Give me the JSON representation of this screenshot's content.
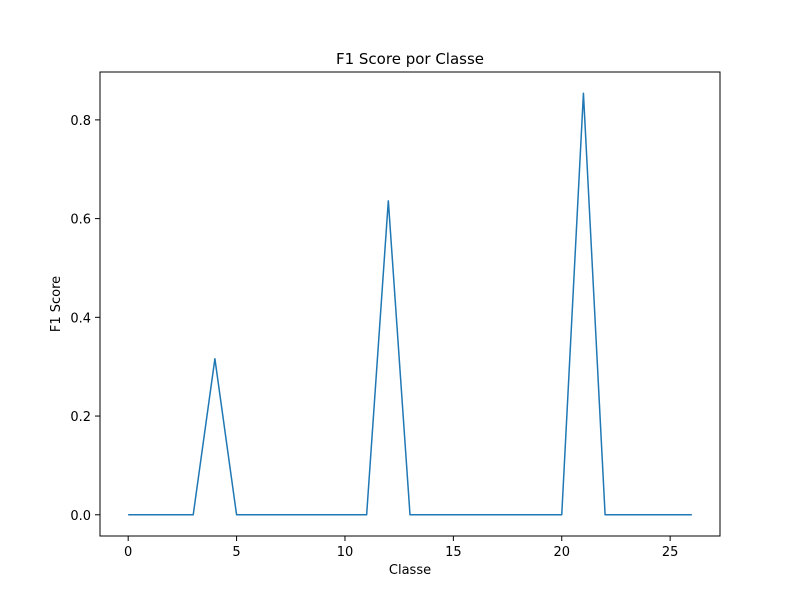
{
  "chart_data": {
    "type": "line",
    "title": "F1 Score por Classe",
    "xlabel": "Classe",
    "ylabel": "F1 Score",
    "xlim": [
      -1.3,
      27.3
    ],
    "ylim": [
      -0.043,
      0.897
    ],
    "xticks": [
      0,
      5,
      10,
      15,
      20,
      25
    ],
    "yticks": [
      0.0,
      0.2,
      0.4,
      0.6,
      0.8
    ],
    "ytick_labels": [
      "0.0",
      "0.2",
      "0.4",
      "0.6",
      "0.8"
    ],
    "grid": false,
    "series": [
      {
        "color": "#1f77b4",
        "x": [
          0,
          1,
          2,
          3,
          4,
          5,
          6,
          7,
          8,
          9,
          10,
          11,
          12,
          13,
          14,
          15,
          16,
          17,
          18,
          19,
          20,
          21,
          22,
          23,
          24,
          25,
          26
        ],
        "y": [
          0,
          0,
          0,
          0,
          0.316,
          0,
          0,
          0,
          0,
          0,
          0,
          0,
          0.636,
          0,
          0,
          0,
          0,
          0,
          0,
          0,
          0,
          0.854,
          0,
          0,
          0,
          0,
          0
        ]
      }
    ]
  }
}
